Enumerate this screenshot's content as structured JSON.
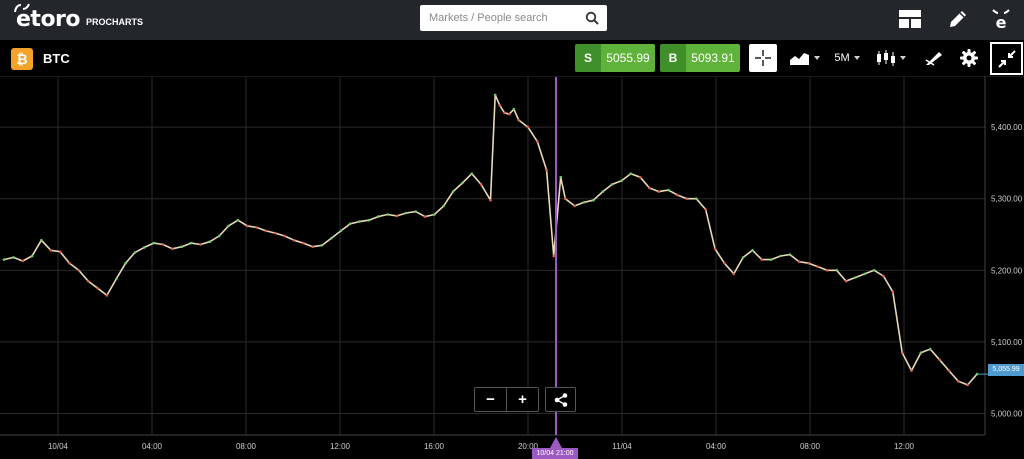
{
  "brand": {
    "name": "etoro",
    "sub": "PROCHARTS"
  },
  "search": {
    "placeholder": "Markets / People search"
  },
  "header_icons": [
    "layout-icon",
    "edit-icon",
    "etoro-e-icon"
  ],
  "instrument": {
    "symbol": "BTC",
    "icon_glyph": "₿"
  },
  "sell": {
    "tag": "S",
    "value": "5055.99"
  },
  "buy": {
    "tag": "B",
    "value": "5093.91"
  },
  "toolbar": {
    "timeframe": "5M"
  },
  "colors": {
    "accent_green": "#5fb33a",
    "sell_tag": "#3f8f2a",
    "bitcoin": "#f3a32c",
    "crosshair": "#9c59c2",
    "price_marker": "#4e9ad1"
  },
  "zoom": {
    "minus": "−",
    "plus": "+"
  },
  "chart_data": {
    "type": "line",
    "y_ticks": [
      "5,400.00",
      "5,300.00",
      "5,200.00",
      "5,100.00",
      "5,000.00"
    ],
    "x_ticks": [
      "10/04",
      "04:00",
      "08:00",
      "12:00",
      "16:00",
      "20:00",
      "11/04",
      "04:00",
      "08:00",
      "12:00"
    ],
    "ylim": [
      4970,
      5470
    ],
    "current_price_label": "5,055.99",
    "crosshair_label": "10/04 21:00",
    "series": [
      {
        "x": [
          0.0,
          0.4,
          0.8,
          1.2,
          1.6,
          2.0,
          2.4,
          2.8,
          3.2,
          3.6,
          4.0,
          4.4,
          4.8,
          5.2,
          5.6,
          6.0,
          6.4,
          6.8,
          7.2,
          7.6,
          8.0,
          8.4,
          8.8,
          9.2,
          9.6,
          10.0,
          10.4,
          10.8,
          11.2,
          11.6,
          12.0,
          12.4,
          12.8,
          13.2,
          13.6,
          14.0,
          14.4,
          14.8,
          15.2,
          15.6,
          16.0,
          16.4,
          16.8,
          17.2,
          17.6,
          18.0,
          18.4,
          18.8,
          19.2,
          19.6,
          20.0,
          20.4,
          20.8,
          21.0,
          21.2,
          21.4,
          21.6,
          21.8,
          22.0,
          22.4,
          22.8,
          23.2,
          23.5,
          23.8,
          24.0,
          24.4,
          24.8,
          25.2,
          25.6,
          26.0,
          26.4,
          26.8,
          27.2,
          27.6,
          28.0,
          28.4,
          28.8,
          29.2,
          29.6,
          30.0,
          30.4,
          30.8,
          31.2,
          31.6,
          32.0,
          32.4,
          32.8,
          33.2,
          33.6,
          34.0,
          34.4,
          34.8,
          35.2,
          35.6,
          36.0,
          36.4,
          36.8,
          37.2,
          37.6,
          38.0,
          38.4,
          38.8,
          39.2,
          39.6,
          40.0,
          40.4,
          40.8,
          41.2,
          41.6
        ],
        "values": [
          5215,
          5218,
          5213,
          5220,
          5242,
          5228,
          5226,
          5210,
          5200,
          5185,
          5175,
          5165,
          5188,
          5210,
          5225,
          5232,
          5238,
          5236,
          5230,
          5233,
          5238,
          5236,
          5240,
          5248,
          5262,
          5270,
          5262,
          5260,
          5255,
          5252,
          5248,
          5242,
          5238,
          5233,
          5235,
          5245,
          5255,
          5265,
          5268,
          5270,
          5275,
          5278,
          5276,
          5280,
          5282,
          5275,
          5278,
          5290,
          5310,
          5322,
          5335,
          5320,
          5298,
          5445,
          5430,
          5420,
          5418,
          5425,
          5410,
          5400,
          5380,
          5340,
          5220,
          5330,
          5300,
          5290,
          5295,
          5298,
          5310,
          5320,
          5325,
          5335,
          5330,
          5315,
          5310,
          5312,
          5305,
          5300,
          5300,
          5285,
          5230,
          5210,
          5195,
          5218,
          5228,
          5215,
          5215,
          5220,
          5222,
          5212,
          5210,
          5205,
          5200,
          5200,
          5185,
          5190,
          5195,
          5200,
          5192,
          5170,
          5085,
          5060,
          5085,
          5090,
          5075,
          5060,
          5045,
          5040,
          5055
        ]
      }
    ]
  }
}
